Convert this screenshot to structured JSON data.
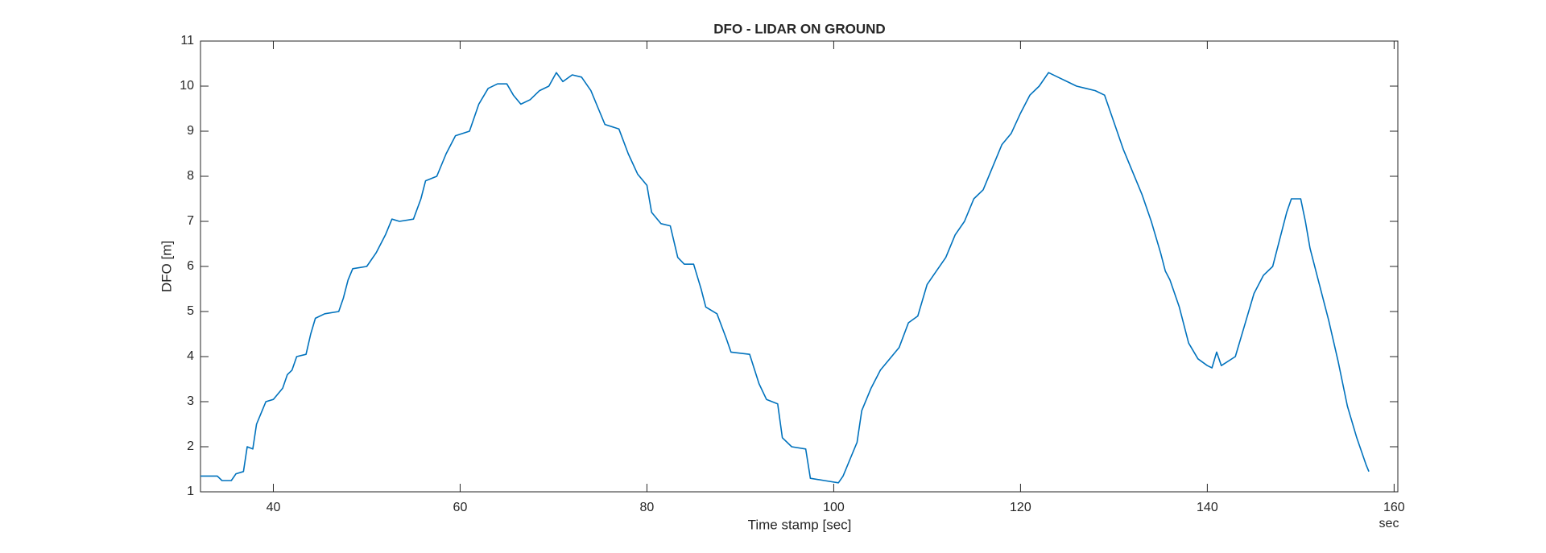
{
  "chart_data": {
    "type": "line",
    "title": "DFO - LIDAR ON GROUND",
    "x_label": "Time stamp [sec]",
    "y_label": "DFO [m]",
    "x_unit_label": "sec",
    "color": "#0072BD",
    "xlim": [
      32.2,
      160.4
    ],
    "xticks": [
      40,
      60,
      80,
      100,
      120,
      140,
      160
    ],
    "ylim": [
      1,
      11
    ],
    "yticks": [
      1,
      2,
      3,
      4,
      5,
      6,
      7,
      8,
      9,
      10,
      11
    ],
    "x": [
      32.2,
      34,
      34.5,
      35.5,
      36,
      36.8,
      37.2,
      37.8,
      38.2,
      38.8,
      39.2,
      40,
      41,
      41.5,
      42,
      42.5,
      43.5,
      44,
      44.5,
      45.5,
      47,
      47.5,
      48,
      48.5,
      50,
      51,
      52,
      52.7,
      53.5,
      55,
      55.8,
      56.3,
      57.5,
      58.5,
      59.5,
      61,
      62,
      63,
      64,
      65,
      65.7,
      66.5,
      67.5,
      68.5,
      69.5,
      70.3,
      71,
      72,
      73,
      74,
      74.8,
      75.5,
      77,
      78,
      79,
      80,
      80.5,
      81.5,
      82.5,
      83.3,
      84,
      85,
      85.8,
      86.3,
      87.5,
      88.5,
      89,
      91,
      92,
      92.8,
      94,
      94.5,
      95.5,
      97,
      97.5,
      99,
      100.5,
      101,
      101.8,
      102.5,
      103,
      104,
      105,
      106,
      107,
      108,
      109,
      110,
      111,
      112,
      113,
      114,
      115,
      116,
      117,
      118,
      119,
      120,
      121,
      122,
      123,
      124,
      125,
      126,
      127,
      128,
      129,
      130,
      131,
      132,
      133,
      134,
      135,
      135.5,
      136,
      137,
      138,
      139,
      140,
      140.5,
      141,
      141.5,
      143,
      144,
      145,
      146,
      147,
      148,
      148.5,
      149,
      150,
      150.5,
      151,
      152,
      153,
      154,
      155,
      156,
      157,
      157.3
    ],
    "values": [
      1.35,
      1.35,
      1.25,
      1.25,
      1.4,
      1.45,
      2.0,
      1.95,
      2.5,
      2.8,
      3.0,
      3.05,
      3.3,
      3.6,
      3.7,
      4.0,
      4.05,
      4.5,
      4.85,
      4.95,
      5.0,
      5.3,
      5.7,
      5.95,
      6.0,
      6.3,
      6.7,
      7.05,
      7.0,
      7.05,
      7.5,
      7.9,
      8.0,
      8.5,
      8.9,
      9.0,
      9.6,
      9.95,
      10.05,
      10.05,
      9.8,
      9.6,
      9.7,
      9.9,
      10.0,
      10.3,
      10.1,
      10.25,
      10.2,
      9.9,
      9.5,
      9.15,
      9.05,
      8.5,
      8.05,
      7.8,
      7.2,
      6.95,
      6.9,
      6.2,
      6.05,
      6.05,
      5.5,
      5.1,
      4.95,
      4.4,
      4.1,
      4.05,
      3.4,
      3.05,
      2.95,
      2.2,
      2.0,
      1.95,
      1.3,
      1.25,
      1.2,
      1.35,
      1.75,
      2.1,
      2.8,
      3.3,
      3.7,
      3.95,
      4.2,
      4.75,
      4.9,
      5.6,
      5.9,
      6.2,
      6.7,
      7.0,
      7.5,
      7.7,
      8.2,
      8.7,
      8.95,
      9.4,
      9.8,
      10.0,
      10.3,
      10.2,
      10.1,
      10.0,
      9.95,
      9.9,
      9.8,
      9.2,
      8.6,
      8.1,
      7.6,
      7.0,
      6.3,
      5.9,
      5.7,
      5.1,
      4.3,
      3.95,
      3.8,
      3.75,
      4.1,
      3.8,
      4.0,
      4.7,
      5.4,
      5.8,
      6.0,
      6.8,
      7.2,
      7.5,
      7.5,
      7.0,
      6.4,
      5.6,
      4.8,
      3.9,
      2.9,
      2.2,
      1.6,
      1.45
    ]
  }
}
